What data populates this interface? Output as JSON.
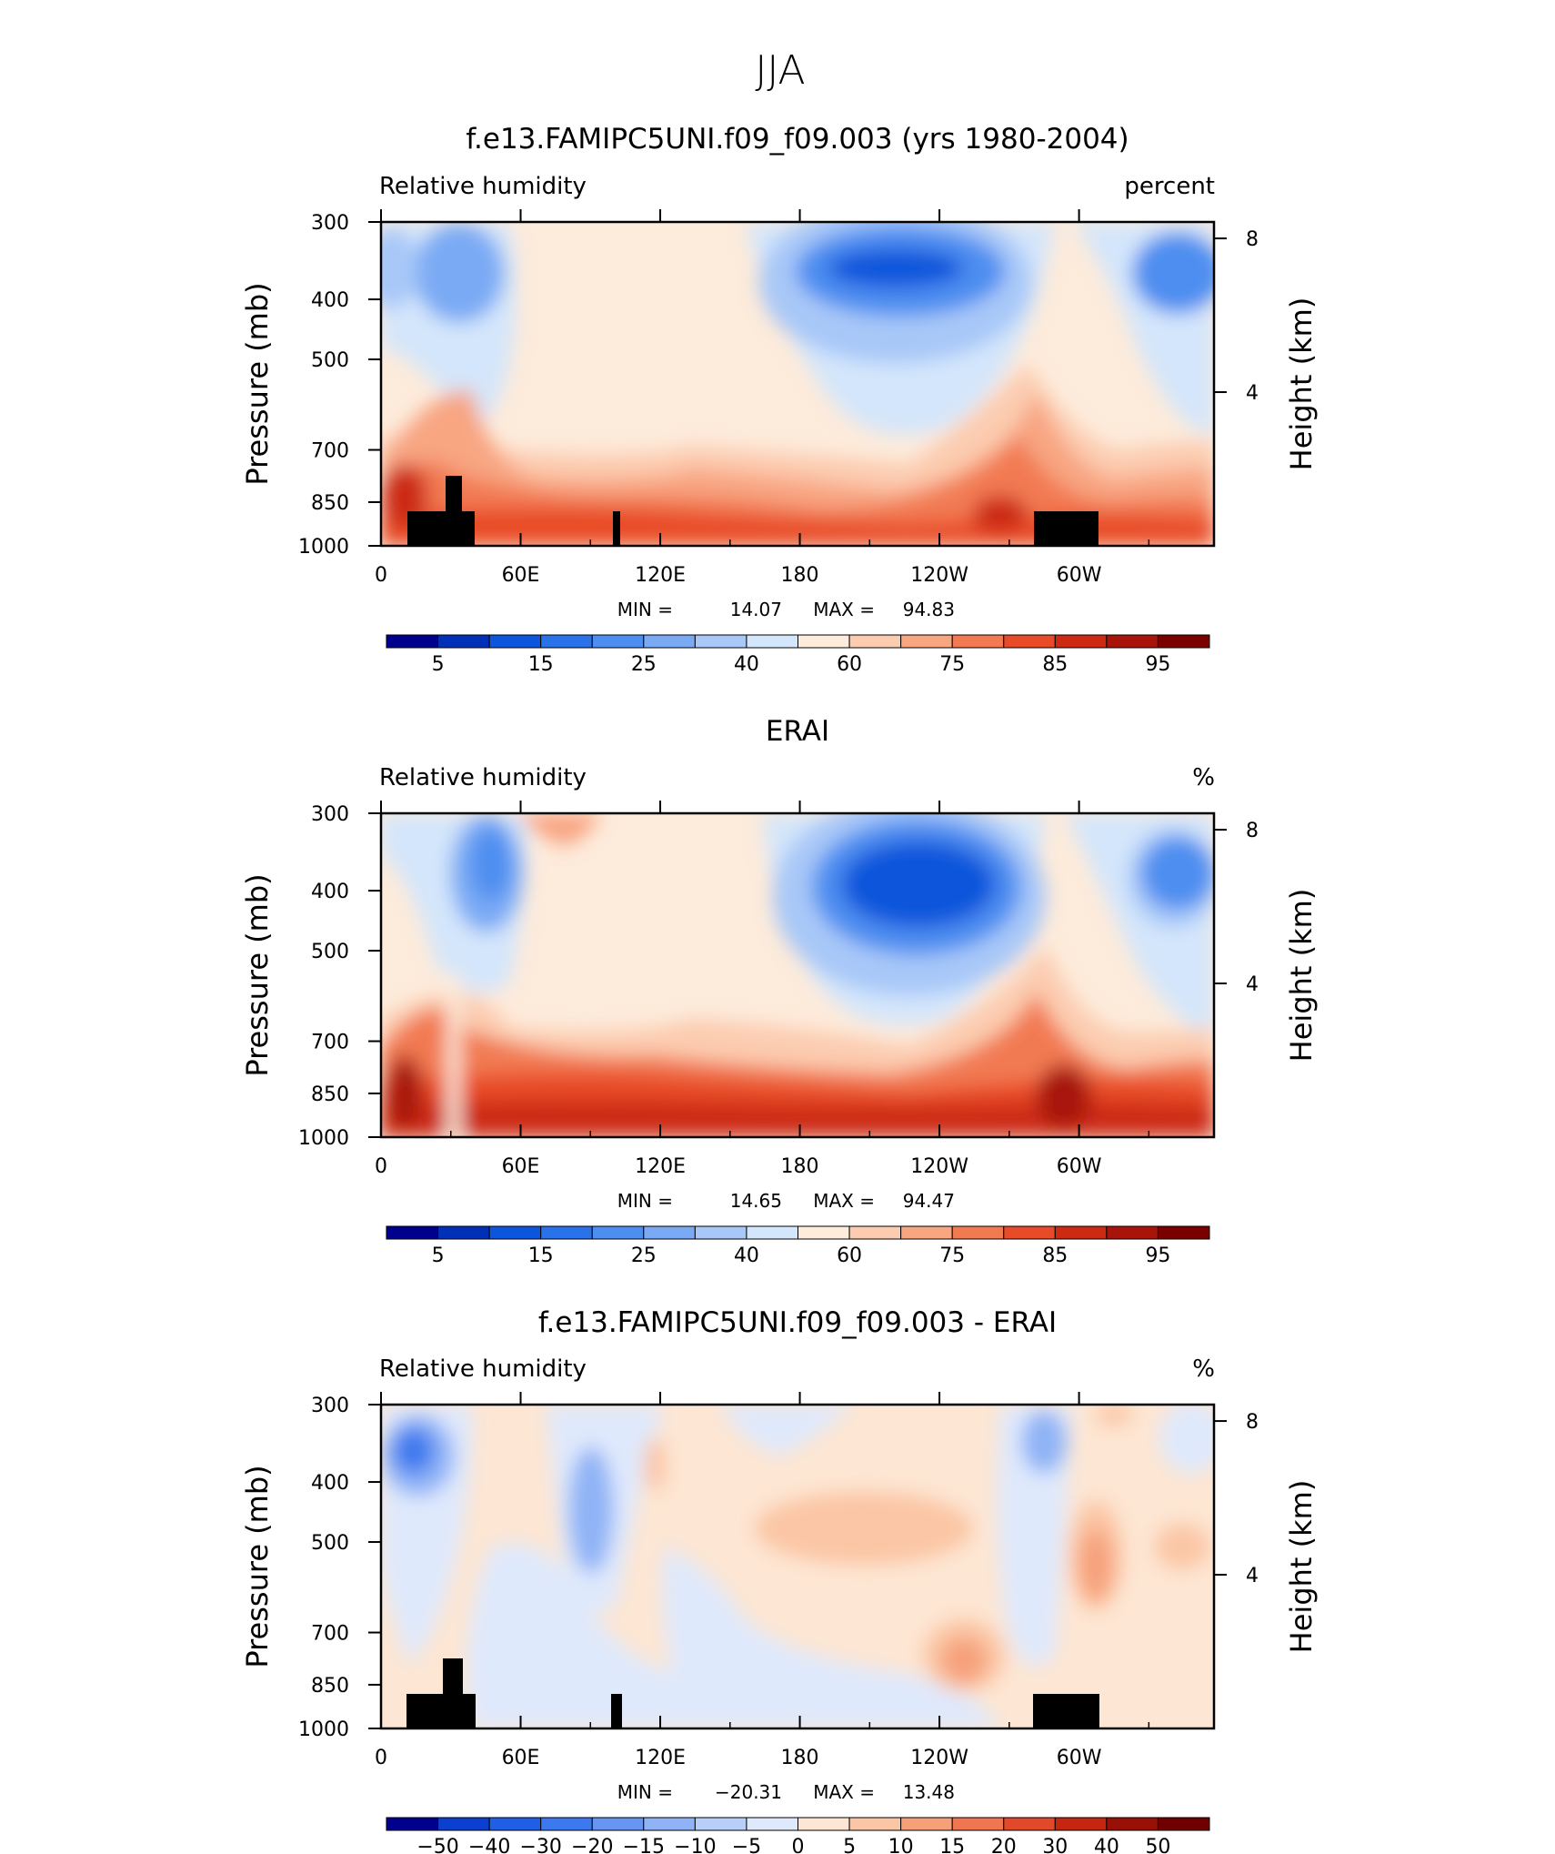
{
  "figure": {
    "title": "JJA"
  },
  "colors": {
    "fill_colorbar": [
      "#00008c",
      "#0030b8",
      "#0b56dc",
      "#2a72ea",
      "#4e8ef0",
      "#7aaaf4",
      "#a8c8f8",
      "#d4e6fb",
      "#fdebdb",
      "#fcccb0",
      "#f8a582",
      "#f27a52",
      "#e84b28",
      "#cc2a12",
      "#a8140a",
      "#7a0000"
    ],
    "diff_colorbar": [
      "#00008c",
      "#0b3fd0",
      "#1f5fe6",
      "#3c78ee",
      "#6696f2",
      "#8fb3f6",
      "#b7cff9",
      "#dfe9fc",
      "#fde6d3",
      "#fbc6a5",
      "#f6a07a",
      "#ef7650",
      "#e2482a",
      "#c42610",
      "#981006",
      "#700000"
    ],
    "land_mask": "#000000"
  },
  "chart_data": [
    {
      "type": "heatmap",
      "title": "f.e13.FAMIPC5UNI.f09_f09.003 (yrs 1980-2004)",
      "left_label": "Relative humidity",
      "right_label": "percent",
      "ylabel": "Pressure (mb)",
      "y2label": "Height (km)",
      "x_ticks": [
        "0",
        "60E",
        "120E",
        "180",
        "120W",
        "60W"
      ],
      "y_ticks": [
        "300",
        "400",
        "500",
        "700",
        "850",
        "1000"
      ],
      "y2_ticks": [
        "8",
        "4"
      ],
      "stats": {
        "min": "14.07",
        "max": "94.83"
      },
      "colorbar_levels": [
        5,
        10,
        15,
        20,
        25,
        30,
        40,
        50,
        60,
        70,
        75,
        80,
        85,
        90,
        95
      ],
      "colorbar_labels": [
        "5",
        "15",
        "25",
        "40",
        "60",
        "75",
        "85",
        "95"
      ],
      "range": [
        14.07,
        94.83
      ],
      "grid": false
    },
    {
      "type": "heatmap",
      "title": "ERAI",
      "left_label": "Relative humidity",
      "right_label": "%",
      "ylabel": "Pressure (mb)",
      "y2label": "Height (km)",
      "x_ticks": [
        "0",
        "60E",
        "120E",
        "180",
        "120W",
        "60W"
      ],
      "y_ticks": [
        "300",
        "400",
        "500",
        "700",
        "850",
        "1000"
      ],
      "y2_ticks": [
        "8",
        "4"
      ],
      "stats": {
        "min": "14.65",
        "max": "94.47"
      },
      "colorbar_levels": [
        5,
        10,
        15,
        20,
        25,
        30,
        40,
        50,
        60,
        70,
        75,
        80,
        85,
        90,
        95
      ],
      "colorbar_labels": [
        "5",
        "15",
        "25",
        "40",
        "60",
        "75",
        "85",
        "95"
      ],
      "range": [
        14.65,
        94.47
      ],
      "grid": false
    },
    {
      "type": "heatmap",
      "title": "f.e13.FAMIPC5UNI.f09_f09.003 - ERAI",
      "left_label": "Relative humidity",
      "right_label": "%",
      "ylabel": "Pressure (mb)",
      "y2label": "Height (km)",
      "x_ticks": [
        "0",
        "60E",
        "120E",
        "180",
        "120W",
        "60W"
      ],
      "y_ticks": [
        "300",
        "400",
        "500",
        "700",
        "850",
        "1000"
      ],
      "y2_ticks": [
        "8",
        "4"
      ],
      "stats": {
        "min": "−20.31",
        "max": "13.48"
      },
      "colorbar_levels": [
        -50,
        -40,
        -30,
        -20,
        -15,
        -10,
        -5,
        0,
        5,
        10,
        15,
        20,
        30,
        40,
        50
      ],
      "colorbar_labels": [
        "−50",
        "−40",
        "−30",
        "−20",
        "−15",
        "−10",
        "−5",
        "0",
        "5",
        "10",
        "15",
        "20",
        "30",
        "40",
        "50"
      ],
      "range": [
        -20.31,
        13.48
      ],
      "grid": false
    }
  ]
}
